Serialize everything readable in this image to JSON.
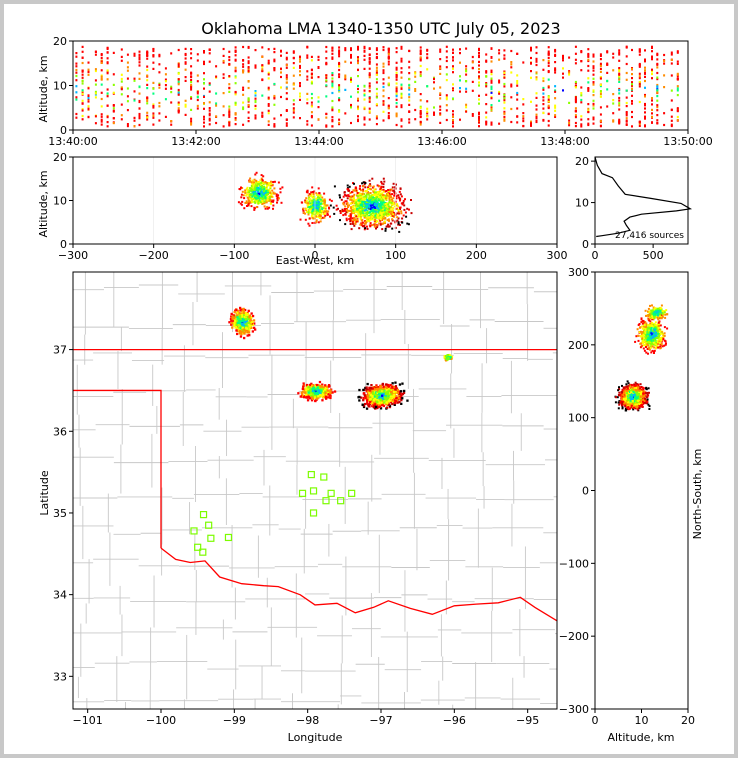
{
  "title": "Oklahoma LMA 1340-1350 UTC July 05, 2023",
  "colors": {
    "scale": [
      "#0000ff",
      "#00b4ff",
      "#00ff80",
      "#8cff00",
      "#ffff00",
      "#ff8c00",
      "#ff0000",
      "#c80000",
      "#000000",
      "#ffffff"
    ],
    "state_line": "#ff0000",
    "county_line": "#c8c8c8",
    "station": "#7cfc00"
  },
  "chart_data": [
    {
      "id": "time_altitude",
      "type": "heatmap",
      "xlabel": "",
      "ylabel": "Altitude, km",
      "xticks": [
        "13:40:00",
        "13:42:00",
        "13:44:00",
        "13:46:00",
        "13:48:00",
        "13:50:00"
      ],
      "xlim_minutes": [
        0,
        10
      ],
      "ylim": [
        0,
        20
      ],
      "yticks": [
        0,
        10,
        20
      ]
    },
    {
      "id": "ew_altitude",
      "type": "heatmap",
      "xlabel": "East-West, km",
      "ylabel": "Altitude, km",
      "xlim": [
        -300,
        300
      ],
      "xticks": [
        -300,
        -200,
        -100,
        0,
        100,
        200,
        300
      ],
      "ylim": [
        0,
        20
      ],
      "yticks": [
        0,
        10,
        20
      ],
      "clusters": [
        {
          "x": -70,
          "y": 12,
          "intensity": "medium"
        },
        {
          "x": 70,
          "y": 9,
          "intensity": "high"
        },
        {
          "x": 0,
          "y": 9,
          "intensity": "medium"
        }
      ]
    },
    {
      "id": "altitude_histogram",
      "type": "line",
      "annotation": "27,416 sources",
      "xlim": [
        0,
        800
      ],
      "xticks": [
        0,
        500
      ],
      "ylim": [
        0,
        21
      ],
      "yticks": [
        0,
        10,
        20
      ],
      "points": [
        [
          0,
          21
        ],
        [
          20,
          19
        ],
        [
          60,
          17
        ],
        [
          150,
          16
        ],
        [
          200,
          14
        ],
        [
          260,
          12
        ],
        [
          480,
          11
        ],
        [
          740,
          9.8
        ],
        [
          820,
          8.5
        ],
        [
          700,
          8
        ],
        [
          400,
          7.2
        ],
        [
          300,
          6.5
        ],
        [
          250,
          5.5
        ],
        [
          270,
          4.5
        ],
        [
          300,
          3.3
        ],
        [
          200,
          2.6
        ],
        [
          60,
          2
        ],
        [
          10,
          1.8
        ]
      ]
    },
    {
      "id": "plan_view",
      "type": "heatmap",
      "xlabel": "Longitude",
      "ylabel": "Latitude",
      "xlim": [
        -101.2,
        -94.6
      ],
      "xticks": [
        -101,
        -100,
        -99,
        -98,
        -97,
        -96,
        -95
      ],
      "ylim": [
        32.6,
        37.95
      ],
      "yticks": [
        33,
        34,
        35,
        36,
        37
      ],
      "clusters": [
        {
          "lon": -98.9,
          "lat": 37.35,
          "intensity": "medium"
        },
        {
          "lon": -97.9,
          "lat": 36.5,
          "intensity": "medium"
        },
        {
          "lon": -97.0,
          "lat": 36.45,
          "intensity": "high"
        },
        {
          "lon": -96.1,
          "lat": 36.92,
          "intensity": "low"
        }
      ],
      "stations": [
        [
          -97.95,
          35.47
        ],
        [
          -97.78,
          35.44
        ],
        [
          -98.07,
          35.24
        ],
        [
          -97.92,
          35.27
        ],
        [
          -97.68,
          35.24
        ],
        [
          -97.75,
          35.15
        ],
        [
          -97.55,
          35.15
        ],
        [
          -97.4,
          35.24
        ],
        [
          -97.92,
          35.0
        ],
        [
          -99.42,
          34.98
        ],
        [
          -99.35,
          34.85
        ],
        [
          -99.55,
          34.78
        ],
        [
          -99.32,
          34.69
        ],
        [
          -99.08,
          34.7
        ],
        [
          -99.5,
          34.58
        ],
        [
          -99.43,
          34.52
        ]
      ]
    },
    {
      "id": "altitude_ns",
      "type": "heatmap",
      "xlabel": "Altitude, km",
      "ylabel": "North-South, km",
      "xlim": [
        0,
        20
      ],
      "xticks": [
        0,
        10,
        20
      ],
      "ylim": [
        -300,
        300
      ],
      "yticks": [
        300,
        200,
        100,
        0,
        -100,
        -200,
        -300
      ],
      "clusters": [
        {
          "x": 8,
          "y": 130,
          "intensity": "high"
        },
        {
          "x": 12,
          "y": 215,
          "intensity": "medium"
        },
        {
          "x": 13,
          "y": 245,
          "intensity": "low"
        }
      ]
    }
  ]
}
